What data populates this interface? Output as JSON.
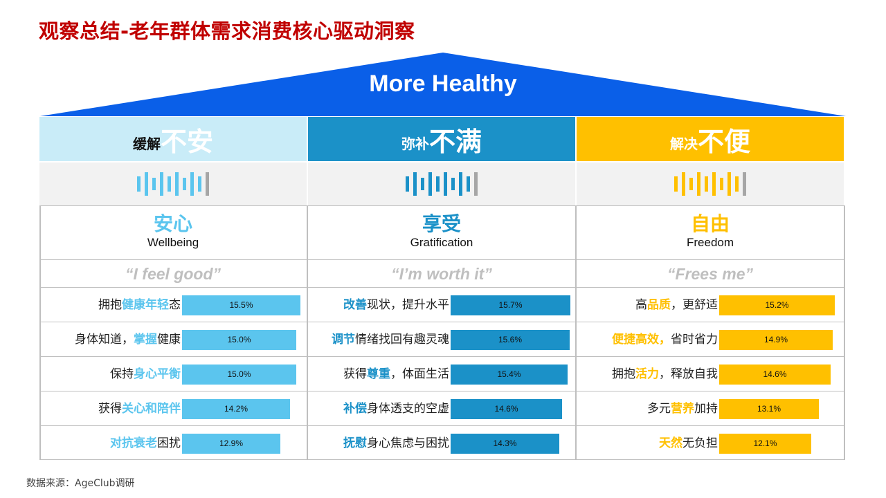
{
  "title": "观察总结-老年群体需求消费核心驱动洞察",
  "roof_label": "More Healthy",
  "source": "数据来源：AgeClub调研",
  "colors": {
    "blue_light": "#5bc5ee",
    "blue_light_bg": "#c9ecf8",
    "blue_mid": "#1b91c8",
    "yellow": "#ffc000",
    "roof": "#0a5fe8",
    "title": "#c00000",
    "sound_gray": "#a6a6a6"
  },
  "chart_data": {
    "type": "bar",
    "columns": [
      {
        "head_small": "缓解",
        "head_big": "不安",
        "zh": "安心",
        "en": "Wellbeing",
        "quote": "“I feel good”",
        "color": "#5bc5ee",
        "head_bg": "#c9ecf8",
        "small_color": "#111111",
        "big_color": "#ffffff",
        "zh_color": "#5bc5ee",
        "items": [
          {
            "parts": [
              {
                "t": "拥抱",
                "h": false
              },
              {
                "t": "健康年轻",
                "h": true
              },
              {
                "t": "态",
                "h": false
              }
            ],
            "value": 15.5,
            "label": "15.5%"
          },
          {
            "parts": [
              {
                "t": "身体知道，",
                "h": false
              },
              {
                "t": "掌握",
                "h": true
              },
              {
                "t": "健康",
                "h": false
              }
            ],
            "value": 15.0,
            "label": "15.0%"
          },
          {
            "parts": [
              {
                "t": "保持",
                "h": false
              },
              {
                "t": "身心平衡",
                "h": true
              }
            ],
            "value": 15.0,
            "label": "15.0%"
          },
          {
            "parts": [
              {
                "t": "获得",
                "h": false
              },
              {
                "t": "关心和陪伴",
                "h": true
              }
            ],
            "value": 14.2,
            "label": "14.2%"
          },
          {
            "parts": [
              {
                "t": "对抗衰老",
                "h": true
              },
              {
                "t": "困扰",
                "h": false
              }
            ],
            "value": 12.9,
            "label": "12.9%"
          }
        ]
      },
      {
        "head_small": "弥补",
        "head_big": "不满",
        "zh": "享受",
        "en": "Gratification",
        "quote": "“I’m worth it”",
        "color": "#1b91c8",
        "head_bg": "#1b91c8",
        "small_color": "#ffffff",
        "big_color": "#ffffff",
        "zh_color": "#1b91c8",
        "items": [
          {
            "parts": [
              {
                "t": "改善",
                "h": true
              },
              {
                "t": "现状，提升水平",
                "h": false
              }
            ],
            "value": 15.7,
            "label": "15.7%"
          },
          {
            "parts": [
              {
                "t": "调节",
                "h": true
              },
              {
                "t": "情绪找回有趣灵魂",
                "h": false
              }
            ],
            "value": 15.6,
            "label": "15.6%"
          },
          {
            "parts": [
              {
                "t": "获得",
                "h": false
              },
              {
                "t": "尊重",
                "h": true
              },
              {
                "t": "，体面生活",
                "h": false
              }
            ],
            "value": 15.4,
            "label": "15.4%"
          },
          {
            "parts": [
              {
                "t": "补偿",
                "h": true
              },
              {
                "t": "身体透支的空虚",
                "h": false
              }
            ],
            "value": 14.6,
            "label": "14.6%"
          },
          {
            "parts": [
              {
                "t": "抚慰",
                "h": true
              },
              {
                "t": "身心焦虑与困扰",
                "h": false
              }
            ],
            "value": 14.3,
            "label": "14.3%"
          }
        ]
      },
      {
        "head_small": "解决",
        "head_big": "不便",
        "zh": "自由",
        "en": "Freedom",
        "quote": "“Frees me”",
        "color": "#ffc000",
        "head_bg": "#ffc000",
        "small_color": "#ffffff",
        "big_color": "#ffffff",
        "zh_color": "#ffc000",
        "items": [
          {
            "parts": [
              {
                "t": "高",
                "h": false
              },
              {
                "t": "品质",
                "h": true
              },
              {
                "t": "，更舒适",
                "h": false
              }
            ],
            "value": 15.2,
            "label": "15.2%"
          },
          {
            "parts": [
              {
                "t": "便捷高效，",
                "h": true
              },
              {
                "t": "省时省力",
                "h": false
              }
            ],
            "value": 14.9,
            "label": "14.9%"
          },
          {
            "parts": [
              {
                "t": "拥抱",
                "h": false
              },
              {
                "t": "活力",
                "h": true
              },
              {
                "t": "，释放自我",
                "h": false
              }
            ],
            "value": 14.6,
            "label": "14.6%"
          },
          {
            "parts": [
              {
                "t": "多元",
                "h": false
              },
              {
                "t": "营养",
                "h": true
              },
              {
                "t": "加持",
                "h": false
              }
            ],
            "value": 13.1,
            "label": "13.1%"
          },
          {
            "parts": [
              {
                "t": "天然",
                "h": true
              },
              {
                "t": "无负担",
                "h": false
              }
            ],
            "value": 12.1,
            "label": "12.1%"
          }
        ]
      }
    ]
  }
}
